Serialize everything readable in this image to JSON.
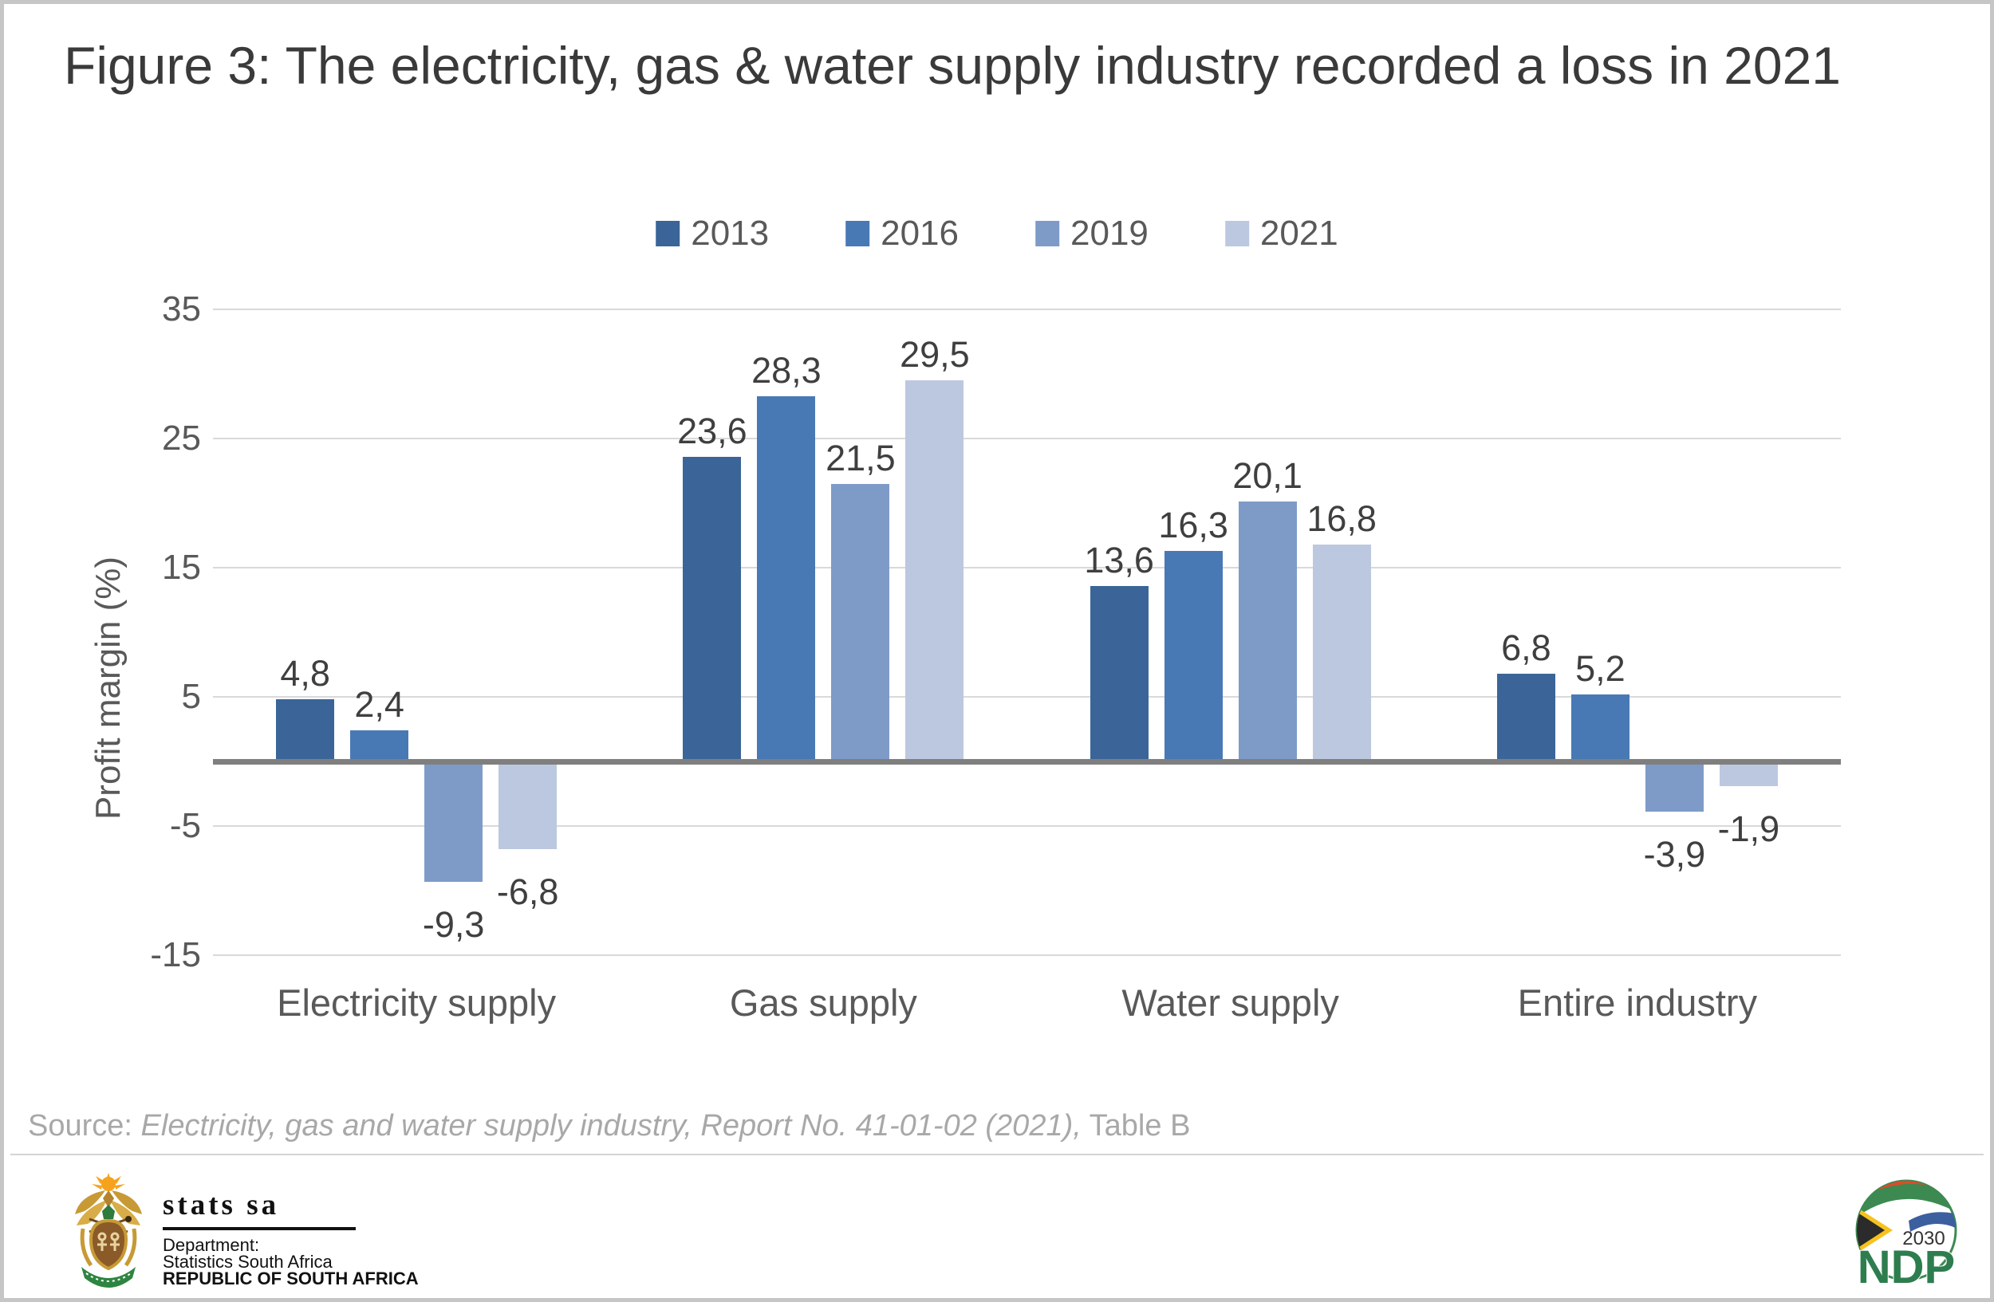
{
  "figure": {
    "title": "Figure 3: The electricity, gas & water supply industry recorded a loss in 2021"
  },
  "chart_data": {
    "type": "bar",
    "title": "Figure 3: The electricity, gas & water supply industry recorded a loss in 2021",
    "categories": [
      "Electricity supply",
      "Gas supply",
      "Water supply",
      "Entire industry"
    ],
    "series": [
      {
        "name": "2013",
        "color": "#3b6598",
        "values": [
          4.8,
          23.6,
          13.6,
          6.8
        ],
        "labels": [
          "4,8",
          "23,6",
          "13,6",
          "6,8"
        ]
      },
      {
        "name": "2016",
        "color": "#4879b4",
        "values": [
          2.4,
          28.3,
          16.3,
          5.2
        ],
        "labels": [
          "2,4",
          "28,3",
          "16,3",
          "5,2"
        ]
      },
      {
        "name": "2019",
        "color": "#7e9bc8",
        "values": [
          -9.3,
          21.5,
          20.1,
          -3.9
        ],
        "labels": [
          "-9,3",
          "21,5",
          "20,1",
          "-3,9"
        ]
      },
      {
        "name": "2021",
        "color": "#bcc8df",
        "values": [
          -6.8,
          29.5,
          16.8,
          -1.9
        ],
        "labels": [
          "-6,8",
          "29,5",
          "16,8",
          "-1,9"
        ]
      }
    ],
    "xlabel": "",
    "ylabel": "Profit margin (%)",
    "yticks": [
      35,
      25,
      15,
      5,
      -5,
      -15
    ],
    "ylim": [
      -15,
      35
    ],
    "grid": true,
    "legend_position": "top",
    "decimal_separator": ",",
    "gridline_color": "#d9d9d9",
    "zero_line_color": "#7f7f7f",
    "text_color": "#595959"
  },
  "source": {
    "prefix": "Source: ",
    "italic": "Electricity, gas and water supply industry, Report No. 41-01-02 (2021),",
    "suffix": " Table B"
  },
  "footer": {
    "statssa": {
      "name": "stats sa",
      "dept_line1": "Department:",
      "dept_line2": "Statistics South Africa",
      "dept_line3": "REPUBLIC OF SOUTH AFRICA"
    },
    "ndp": {
      "acronym": "NDP",
      "year": "2030"
    }
  }
}
